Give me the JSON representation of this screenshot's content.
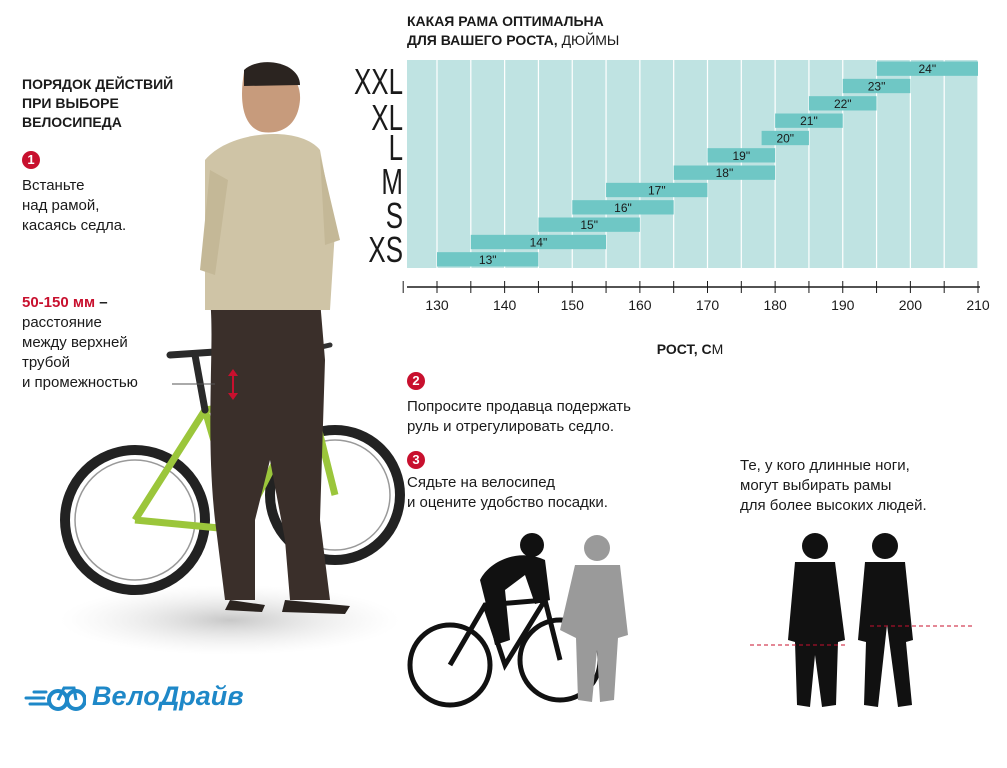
{
  "title": {
    "line1": "КАКАЯ РАМА ОПТИМАЛЬНА",
    "line2_bold": "ДЛЯ ВАШЕГО РОСТА,",
    "line2_rest": " ДЮЙМЫ"
  },
  "steps_heading": [
    "ПОРЯДОК ДЕЙСТВИЙ",
    "ПРИ ВЫБОРЕ",
    "ВЕЛОСИПЕДА"
  ],
  "step1": {
    "number": "1",
    "lines": [
      "Встаньте",
      "над рамой,",
      "касаясь седла."
    ]
  },
  "gap_note": {
    "value": "50-150 мм",
    "dash": " –",
    "lines": [
      "расстояние",
      "между верхней",
      "трубой",
      "и промежностью"
    ]
  },
  "step2": {
    "number": "2",
    "lines": [
      "Попросите продавца подержать",
      "руль и отрегулировать седло."
    ]
  },
  "step3": {
    "number": "3",
    "lines": [
      "Сядьте на велосипед",
      "и оцените удобство посадки."
    ]
  },
  "legs_note": {
    "lines": [
      "Те, у кого длинные ноги,",
      "могут выбирать рамы",
      "для более высоких людей."
    ]
  },
  "logo": {
    "text": "ВелоДрайв"
  },
  "colors": {
    "accent": "#c8102e",
    "chart_bg": "#bfe3e2",
    "bar": "#6fc7c5",
    "logo": "#1e88c8"
  },
  "icons": [
    "cyclist-on-bike-icon",
    "bike-icon",
    "person-silhouette-icon",
    "man-with-bike-photo"
  ],
  "chart_data": {
    "type": "bar",
    "orientation": "horizontal-ranges",
    "x_axis_label_bold": "РОСТ, С",
    "x_axis_label_rest": "М",
    "xlim": [
      125,
      210
    ],
    "x_ticks": [
      130,
      140,
      150,
      160,
      170,
      180,
      190,
      200,
      210
    ],
    "size_labels": [
      "XXL",
      "XL",
      "L",
      "M",
      "S",
      "XS"
    ],
    "bars": [
      {
        "label": "13\"",
        "from": 130,
        "to": 145
      },
      {
        "label": "14\"",
        "from": 135,
        "to": 155
      },
      {
        "label": "15\"",
        "from": 145,
        "to": 160
      },
      {
        "label": "16\"",
        "from": 150,
        "to": 165
      },
      {
        "label": "17\"",
        "from": 155,
        "to": 170
      },
      {
        "label": "18\"",
        "from": 165,
        "to": 180
      },
      {
        "label": "19\"",
        "from": 170,
        "to": 180
      },
      {
        "label": "20\"",
        "from": 178,
        "to": 185
      },
      {
        "label": "21\"",
        "from": 180,
        "to": 190
      },
      {
        "label": "22\"",
        "from": 185,
        "to": 195
      },
      {
        "label": "23\"",
        "from": 190,
        "to": 200
      },
      {
        "label": "24\"",
        "from": 195,
        "to": 210
      }
    ],
    "grid": true
  }
}
